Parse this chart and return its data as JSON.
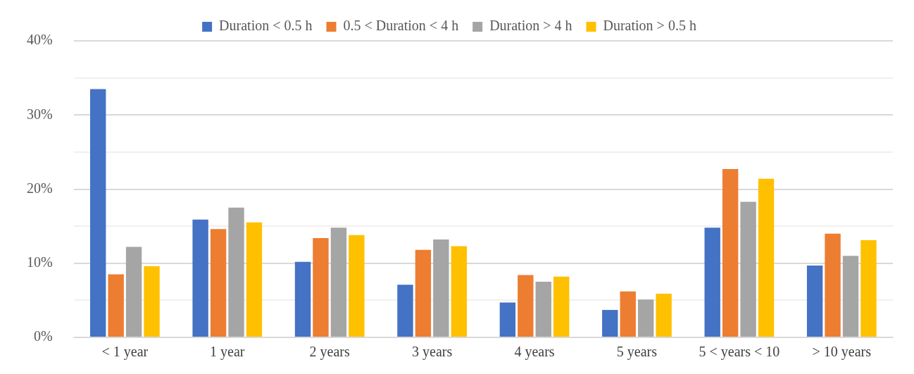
{
  "chart_data": {
    "type": "bar",
    "categories": [
      "< 1 year",
      "1 year",
      "2 years",
      "3 years",
      "4 years",
      "5 years",
      "5 < years < 10",
      "> 10 years"
    ],
    "series": [
      {
        "name": "Duration < 0.5 h",
        "color": "#4472c4",
        "values": [
          33.5,
          15.9,
          10.2,
          7.1,
          4.7,
          3.7,
          14.8,
          9.7
        ]
      },
      {
        "name": "0.5 < Duration < 4 h",
        "color": "#ed7d31",
        "values": [
          8.5,
          14.6,
          13.4,
          11.8,
          8.4,
          6.2,
          22.7,
          14.0
        ]
      },
      {
        "name": "Duration > 4 h",
        "color": "#a5a5a5",
        "values": [
          12.2,
          17.5,
          14.8,
          13.2,
          7.5,
          5.1,
          18.3,
          11.0
        ]
      },
      {
        "name": "Duration > 0.5 h",
        "color": "#ffc000",
        "values": [
          9.6,
          15.5,
          13.8,
          12.3,
          8.2,
          5.9,
          21.4,
          13.1
        ]
      }
    ],
    "ylim": [
      0,
      40
    ],
    "yticks": [
      {
        "value": 0,
        "label": "0%"
      },
      {
        "value": 5,
        "label": null
      },
      {
        "value": 10,
        "label": "10%"
      },
      {
        "value": 15,
        "label": null
      },
      {
        "value": 20,
        "label": "20%"
      },
      {
        "value": 25,
        "label": null
      },
      {
        "value": 30,
        "label": "30%"
      },
      {
        "value": 35,
        "label": null
      },
      {
        "value": 40,
        "label": "40%"
      }
    ],
    "grid": "y",
    "legend": "top"
  }
}
